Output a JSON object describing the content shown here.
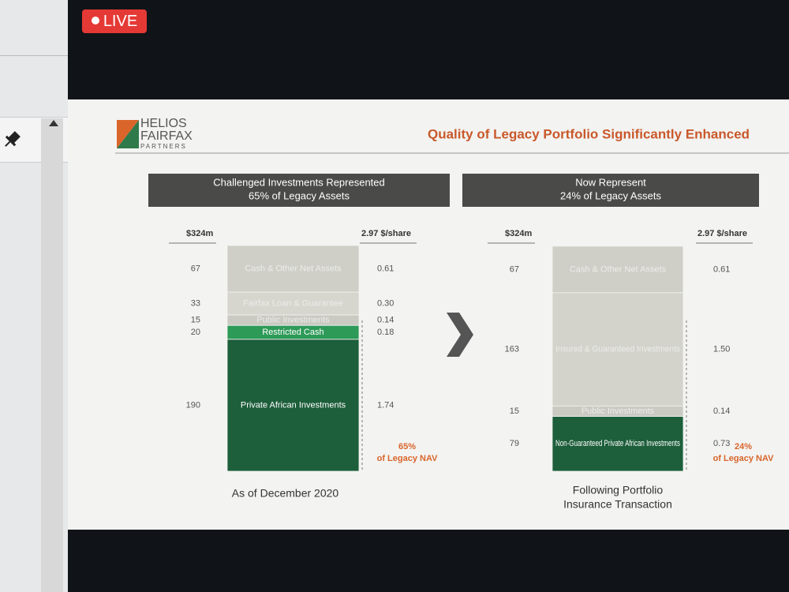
{
  "live_badge": "LIVE",
  "logo": {
    "line1": "HELIOS",
    "line2": "FAIRFAX",
    "line3": "PARTNERS"
  },
  "slide_title": "Quality of Legacy Portfolio Significantly Enhanced",
  "panels": [
    {
      "header": [
        "Challenged Investments Represented",
        "65% of Legacy Assets"
      ],
      "left_header": "$324m",
      "right_header": "2.97 $/share",
      "segments": [
        {
          "label": "Cash & Other Net Assets",
          "amount": 67,
          "per_share": "0.61",
          "color": "#cfcfc8",
          "text_color": "#ececea"
        },
        {
          "label": "Fairfax Loan & Guarantee",
          "amount": 33,
          "per_share": "0.30",
          "color": "#d6d6cf",
          "text_color": "#ececea"
        },
        {
          "label": "Public Investments",
          "amount": 15,
          "per_share": "0.14",
          "color": "#cacac3",
          "text_color": "#ececea"
        },
        {
          "label": "Restricted Cash",
          "amount": 20,
          "per_share": "0.18",
          "color": "#2e9a58",
          "text_color": "#ffffff"
        },
        {
          "label": "Private African Investments",
          "amount": 190,
          "per_share": "1.74",
          "color": "#1d5e3b",
          "text_color": "#ffffff"
        }
      ],
      "nav_pct": "65%",
      "nav_label": "of Legacy NAV",
      "caption": [
        "As of December 2020"
      ]
    },
    {
      "header": [
        "Now Represent",
        "24% of Legacy Assets"
      ],
      "left_header": "$324m",
      "right_header": "2.97 $/share",
      "segments": [
        {
          "label": "Cash & Other Net Assets",
          "amount": 67,
          "per_share": "0.61",
          "color": "#cfcfc8",
          "text_color": "#ececea"
        },
        {
          "label": "Insured & Guaranteed Investments",
          "amount": 163,
          "per_share": "1.50",
          "color": "#d3d3cc",
          "text_color": "#ececea"
        },
        {
          "label": "Public Investments",
          "amount": 15,
          "per_share": "0.14",
          "color": "#cacac3",
          "text_color": "#ececea"
        },
        {
          "label": "Non-Guaranteed Private African Investments",
          "amount": 79,
          "per_share": "0.73",
          "color": "#1d5e3b",
          "text_color": "#ffffff"
        }
      ],
      "nav_pct": "24%",
      "nav_label": "of Legacy NAV",
      "caption": [
        "Following Portfolio",
        "Insurance Transaction"
      ]
    }
  ]
}
